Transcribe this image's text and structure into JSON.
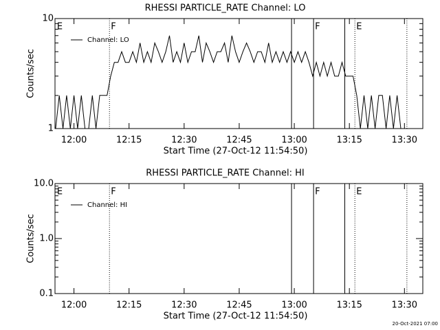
{
  "chart_data": [
    {
      "type": "line",
      "title": "RHESSI PARTICLE_RATE Channel: LO",
      "xlabel": "Start Time (27-Oct-12 11:54:50)",
      "ylabel": "Counts/sec",
      "xlim": [
        "11:54:50",
        "13:35:00"
      ],
      "xticks": [
        "12:00",
        "12:15",
        "12:30",
        "12:45",
        "13:00",
        "13:15",
        "13:30"
      ],
      "ylim": [
        1,
        10
      ],
      "yticks": [
        1,
        10
      ],
      "yscale": "log",
      "legend": "upper left",
      "annotations": [
        {
          "x": "11:55",
          "style": "none",
          "label": "E"
        },
        {
          "x": "12:09:40",
          "style": "dotted",
          "label": "F"
        },
        {
          "x": "12:59:15",
          "style": "solid"
        },
        {
          "x": "13:05:15",
          "style": "solid",
          "label": "F"
        },
        {
          "x": "13:13:45",
          "style": "solid"
        },
        {
          "x": "13:16:30",
          "style": "dotted",
          "label": "E"
        },
        {
          "x": "13:30:40",
          "style": "dotted"
        }
      ],
      "x": [
        "11:55",
        "11:56",
        "11:57",
        "11:58",
        "11:59",
        "12:00",
        "12:01",
        "12:02",
        "12:03",
        "12:04",
        "12:05",
        "12:06",
        "12:07",
        "12:08",
        "12:09",
        "12:10",
        "12:11",
        "12:12",
        "12:13",
        "12:14",
        "12:15",
        "12:16",
        "12:17",
        "12:18",
        "12:19",
        "12:20",
        "12:21",
        "12:22",
        "12:23",
        "12:24",
        "12:25",
        "12:26",
        "12:27",
        "12:28",
        "12:29",
        "12:30",
        "12:31",
        "12:32",
        "12:33",
        "12:34",
        "12:35",
        "12:36",
        "12:37",
        "12:38",
        "12:39",
        "12:40",
        "12:41",
        "12:42",
        "12:43",
        "12:44",
        "12:45",
        "12:46",
        "12:47",
        "12:48",
        "12:49",
        "12:50",
        "12:51",
        "12:52",
        "12:53",
        "12:54",
        "12:55",
        "12:56",
        "12:57",
        "12:58",
        "12:59",
        "13:00",
        "13:01",
        "13:02",
        "13:03",
        "13:04",
        "13:05",
        "13:06",
        "13:07",
        "13:08",
        "13:09",
        "13:10",
        "13:11",
        "13:12",
        "13:13",
        "13:14",
        "13:15",
        "13:16",
        "13:17",
        "13:18",
        "13:19",
        "13:20",
        "13:21",
        "13:22",
        "13:23",
        "13:24",
        "13:25",
        "13:26",
        "13:27",
        "13:28",
        "13:29",
        "13:30"
      ],
      "series": [
        {
          "name": "Channel: LO",
          "color": "#000000",
          "values": [
            1,
            2,
            1,
            2,
            1,
            2,
            1,
            2,
            1,
            1,
            2,
            1,
            2,
            2,
            2,
            3,
            4,
            4,
            5,
            4,
            4,
            5,
            4,
            6,
            4,
            5,
            4,
            6,
            5,
            4,
            5,
            7,
            4,
            5,
            4,
            6,
            4,
            5,
            5,
            7,
            4,
            6,
            5,
            4,
            5,
            5,
            6,
            4,
            7,
            5,
            4,
            5,
            6,
            5,
            4,
            5,
            5,
            4,
            6,
            4,
            5,
            4,
            5,
            4,
            5,
            4,
            5,
            4,
            5,
            4,
            3,
            4,
            3,
            4,
            3,
            4,
            3,
            3,
            4,
            3,
            3,
            3,
            2,
            1,
            2,
            1,
            2,
            1,
            2,
            2,
            1,
            2,
            1,
            2,
            1,
            1
          ]
        }
      ]
    },
    {
      "type": "line",
      "title": "RHESSI PARTICLE_RATE Channel: HI",
      "xlabel": "Start Time (27-Oct-12 11:54:50)",
      "ylabel": "Counts/sec",
      "xlim": [
        "11:54:50",
        "13:35:00"
      ],
      "xticks": [
        "12:00",
        "12:15",
        "12:30",
        "12:45",
        "13:00",
        "13:15",
        "13:30"
      ],
      "ylim": [
        0.1,
        10
      ],
      "yticks": [
        0.1,
        {
          "value": 1,
          "label": "1.0"
        },
        {
          "value": 10,
          "label": "10.0"
        }
      ],
      "yscale": "log",
      "legend": "upper left",
      "annotations": [
        {
          "x": "11:55",
          "style": "none",
          "label": "E"
        },
        {
          "x": "12:09:40",
          "style": "dotted",
          "label": "F"
        },
        {
          "x": "12:59:15",
          "style": "solid"
        },
        {
          "x": "13:05:15",
          "style": "solid",
          "label": "F"
        },
        {
          "x": "13:13:45",
          "style": "solid"
        },
        {
          "x": "13:16:30",
          "style": "dotted",
          "label": "E"
        },
        {
          "x": "13:30:40",
          "style": "dotted"
        }
      ],
      "x": [],
      "series": [
        {
          "name": "Channel: HI",
          "color": "#000000",
          "values": []
        }
      ]
    }
  ],
  "footer": "20-Oct-2021 07:00"
}
